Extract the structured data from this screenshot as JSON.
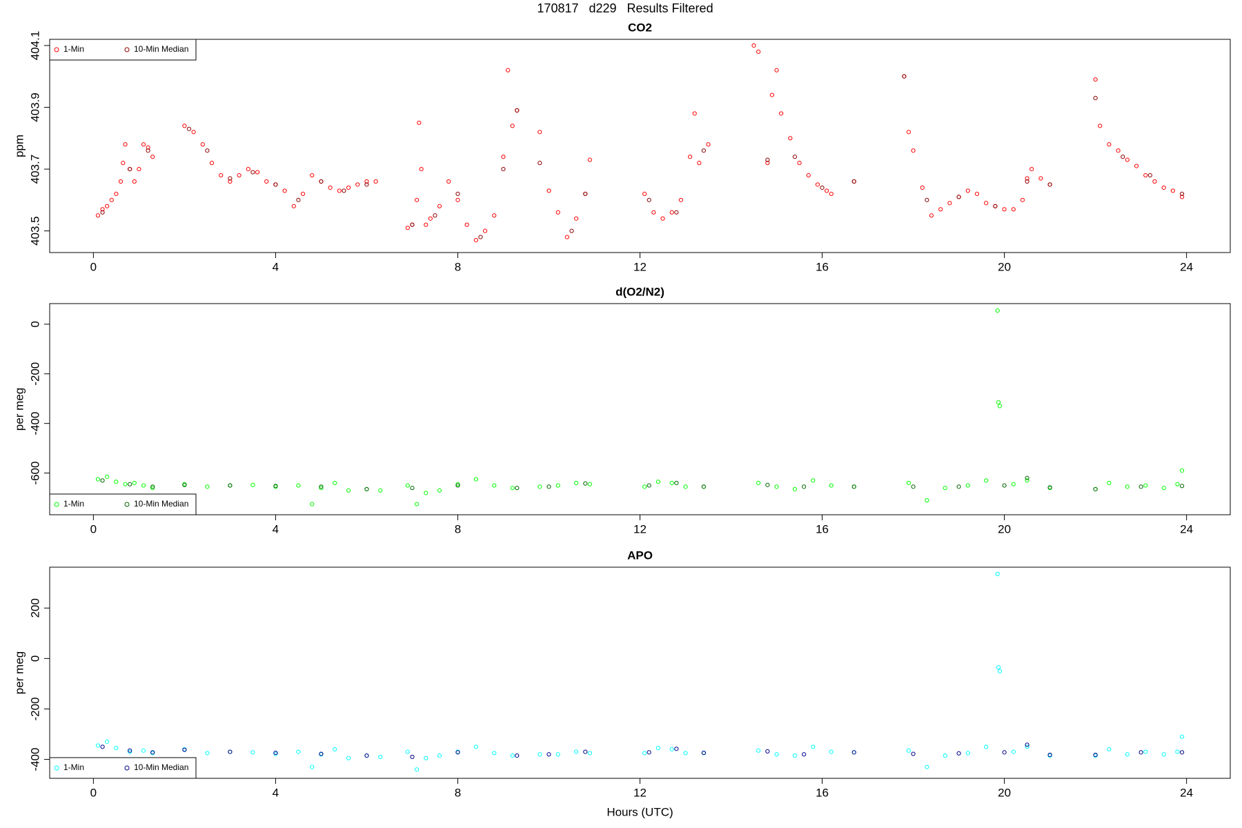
{
  "title": "170817   d229   Results Filtered",
  "chart_data": [
    {
      "type": "scatter",
      "title": "CO2",
      "ylabel": "ppm",
      "legend": "top-left",
      "xlim": [
        -0.96,
        24.96
      ],
      "xticks": [
        0,
        4,
        8,
        12,
        16,
        20,
        24
      ],
      "ylim": [
        403.43,
        404.12
      ],
      "yticks": [
        403.5,
        403.7,
        403.9,
        404.1
      ],
      "series": [
        {
          "name": "1-Min",
          "color": "#ff0000",
          "x": [
            0.1,
            0.2,
            0.3,
            0.4,
            0.5,
            0.6,
            0.65,
            0.7,
            0.8,
            0.9,
            1.0,
            1.1,
            1.2,
            1.3,
            2.0,
            2.2,
            2.4,
            2.6,
            2.8,
            3.0,
            3.2,
            3.4,
            3.6,
            3.8,
            4.0,
            4.2,
            4.4,
            4.6,
            4.8,
            5.0,
            5.2,
            5.4,
            5.6,
            5.8,
            6.0,
            6.2,
            6.9,
            7.0,
            7.1,
            7.15,
            7.2,
            7.3,
            7.4,
            7.6,
            7.8,
            8.0,
            8.2,
            8.4,
            8.6,
            8.8,
            9.0,
            9.1,
            9.2,
            9.3,
            9.8,
            10.0,
            10.2,
            10.4,
            10.6,
            10.8,
            10.9,
            12.1,
            12.3,
            12.5,
            12.7,
            12.9,
            13.1,
            13.2,
            13.3,
            13.5,
            14.5,
            14.6,
            14.8,
            14.9,
            15.0,
            15.1,
            15.3,
            15.5,
            15.7,
            15.9,
            16.1,
            16.2,
            16.7,
            17.8,
            17.9,
            18.0,
            18.2,
            18.4,
            18.6,
            18.8,
            19.0,
            19.2,
            19.4,
            19.6,
            19.8,
            20.0,
            20.2,
            20.4,
            20.5,
            20.6,
            20.8,
            21.0,
            22.0,
            22.1,
            22.3,
            22.5,
            22.7,
            22.9,
            23.1,
            23.3,
            23.5,
            23.7,
            23.9
          ],
          "values": [
            403.55,
            403.57,
            403.58,
            403.6,
            403.62,
            403.66,
            403.72,
            403.78,
            403.7,
            403.66,
            403.7,
            403.78,
            403.77,
            403.74,
            403.84,
            403.82,
            403.78,
            403.72,
            403.68,
            403.66,
            403.68,
            403.7,
            403.69,
            403.66,
            403.65,
            403.63,
            403.58,
            403.62,
            403.68,
            403.66,
            403.64,
            403.63,
            403.64,
            403.65,
            403.66,
            403.66,
            403.51,
            403.52,
            403.6,
            403.85,
            403.7,
            403.52,
            403.54,
            403.58,
            403.66,
            403.6,
            403.52,
            403.47,
            403.5,
            403.55,
            403.74,
            404.02,
            403.84,
            403.89,
            403.82,
            403.63,
            403.56,
            403.48,
            403.54,
            403.62,
            403.73,
            403.62,
            403.56,
            403.54,
            403.56,
            403.6,
            403.74,
            403.88,
            403.72,
            403.78,
            404.1,
            404.08,
            403.72,
            403.94,
            404.02,
            403.88,
            403.8,
            403.72,
            403.68,
            403.65,
            403.63,
            403.62,
            403.66,
            404.0,
            403.82,
            403.76,
            403.64,
            403.55,
            403.57,
            403.59,
            403.61,
            403.63,
            403.62,
            403.59,
            403.58,
            403.57,
            403.57,
            403.6,
            403.67,
            403.7,
            403.67,
            403.65,
            403.99,
            403.84,
            403.78,
            403.76,
            403.73,
            403.71,
            403.68,
            403.66,
            403.64,
            403.63,
            403.61
          ]
        },
        {
          "name": "10-Min Median",
          "color": "#8b0000",
          "x": [
            0.2,
            0.8,
            1.2,
            2.1,
            2.5,
            3.0,
            3.5,
            4.0,
            4.5,
            5.0,
            5.5,
            6.0,
            7.0,
            7.5,
            8.0,
            8.5,
            9.0,
            9.3,
            9.8,
            10.5,
            10.8,
            12.2,
            12.8,
            13.4,
            14.8,
            15.4,
            16.0,
            16.7,
            17.8,
            18.3,
            19.0,
            19.8,
            20.5,
            21.0,
            22.0,
            22.6,
            23.2,
            23.9
          ],
          "values": [
            403.56,
            403.7,
            403.76,
            403.83,
            403.76,
            403.67,
            403.69,
            403.65,
            403.6,
            403.66,
            403.63,
            403.65,
            403.52,
            403.55,
            403.62,
            403.48,
            403.7,
            403.89,
            403.72,
            403.5,
            403.62,
            403.6,
            403.56,
            403.76,
            403.73,
            403.74,
            403.64,
            403.66,
            404.0,
            403.6,
            403.61,
            403.58,
            403.66,
            403.65,
            403.93,
            403.74,
            403.68,
            403.62
          ]
        }
      ]
    },
    {
      "type": "scatter",
      "title": "d(O2/N2)",
      "ylabel": "per meg",
      "legend": "bottom-left",
      "xlim": [
        -0.96,
        24.96
      ],
      "xticks": [
        0,
        4,
        8,
        12,
        16,
        20,
        24
      ],
      "ylim": [
        -768,
        83
      ],
      "yticks": [
        -600,
        -400,
        -200,
        0
      ],
      "series": [
        {
          "name": "1-Min",
          "color": "#00ff00",
          "x": [
            0.1,
            0.3,
            0.5,
            0.7,
            0.9,
            1.1,
            1.3,
            2.0,
            2.5,
            3.0,
            3.5,
            4.0,
            4.5,
            4.8,
            5.0,
            5.3,
            5.6,
            6.0,
            6.3,
            6.9,
            7.1,
            7.3,
            7.6,
            8.0,
            8.4,
            8.8,
            9.2,
            9.8,
            10.2,
            10.6,
            10.9,
            12.1,
            12.4,
            12.7,
            13.0,
            13.4,
            14.6,
            15.0,
            15.4,
            15.8,
            16.2,
            16.7,
            17.9,
            18.3,
            18.7,
            19.2,
            19.6,
            19.85,
            19.87,
            19.9,
            20.2,
            20.5,
            21.0,
            22.0,
            22.3,
            22.7,
            23.1,
            23.5,
            23.8,
            23.9
          ],
          "values": [
            -625,
            -615,
            -635,
            -645,
            -640,
            -650,
            -660,
            -645,
            -655,
            -650,
            -648,
            -655,
            -650,
            -725,
            -660,
            -640,
            -670,
            -665,
            -670,
            -650,
            -725,
            -680,
            -670,
            -645,
            -625,
            -650,
            -660,
            -655,
            -650,
            -640,
            -645,
            -655,
            -635,
            -640,
            -655,
            -655,
            -640,
            -655,
            -665,
            -630,
            -650,
            -655,
            -640,
            -710,
            -660,
            -650,
            -630,
            55,
            -315,
            -330,
            -645,
            -630,
            -660,
            -665,
            -640,
            -655,
            -650,
            -660,
            -645,
            -590
          ]
        },
        {
          "name": "10-Min Median",
          "color": "#006400",
          "x": [
            0.2,
            0.8,
            1.3,
            2.0,
            3.0,
            4.0,
            5.0,
            6.0,
            7.0,
            8.0,
            9.3,
            10.0,
            10.8,
            12.2,
            12.8,
            13.4,
            14.8,
            15.6,
            16.7,
            18.0,
            19.0,
            20.0,
            20.5,
            21.0,
            22.0,
            23.0,
            23.9
          ],
          "values": [
            -630,
            -645,
            -655,
            -648,
            -650,
            -652,
            -655,
            -665,
            -660,
            -650,
            -660,
            -655,
            -642,
            -650,
            -640,
            -655,
            -648,
            -655,
            -655,
            -655,
            -655,
            -650,
            -620,
            -658,
            -665,
            -655,
            -652
          ]
        }
      ]
    },
    {
      "type": "scatter",
      "title": "APO",
      "ylabel": "per meg",
      "xlabel": "Hours (UTC)",
      "legend": "bottom-left",
      "xlim": [
        -0.96,
        24.96
      ],
      "xticks": [
        0,
        4,
        8,
        12,
        16,
        20,
        24
      ],
      "ylim": [
        -475,
        362
      ],
      "yticks": [
        -400,
        -200,
        0,
        200
      ],
      "series": [
        {
          "name": "1-Min",
          "color": "#00ffff",
          "x": [
            0.1,
            0.3,
            0.5,
            0.8,
            1.1,
            1.3,
            2.0,
            2.5,
            3.0,
            3.5,
            4.0,
            4.5,
            4.8,
            5.0,
            5.3,
            5.6,
            6.0,
            6.3,
            6.9,
            7.1,
            7.3,
            7.6,
            8.0,
            8.4,
            8.8,
            9.2,
            9.8,
            10.2,
            10.6,
            10.9,
            12.1,
            12.4,
            12.7,
            13.0,
            13.4,
            14.6,
            15.0,
            15.4,
            15.8,
            16.2,
            16.7,
            17.9,
            18.3,
            18.7,
            19.2,
            19.6,
            19.85,
            19.87,
            19.9,
            20.2,
            20.5,
            21.0,
            22.0,
            22.3,
            22.7,
            23.1,
            23.5,
            23.8,
            23.9
          ],
          "values": [
            -345,
            -330,
            -355,
            -370,
            -365,
            -375,
            -360,
            -375,
            -370,
            -372,
            -378,
            -370,
            -430,
            -380,
            -360,
            -395,
            -385,
            -390,
            -370,
            -440,
            -395,
            -385,
            -370,
            -350,
            -375,
            -385,
            -380,
            -380,
            -370,
            -375,
            -375,
            -355,
            -360,
            -375,
            -375,
            -365,
            -380,
            -385,
            -350,
            -370,
            -372,
            -365,
            -430,
            -385,
            -375,
            -350,
            335,
            -35,
            -50,
            -370,
            -350,
            -385,
            -385,
            -360,
            -380,
            -370,
            -380,
            -370,
            -310
          ]
        },
        {
          "name": "10-Min Median",
          "color": "#00008b",
          "x": [
            0.2,
            0.8,
            1.3,
            2.0,
            3.0,
            4.0,
            5.0,
            6.0,
            7.0,
            8.0,
            9.3,
            10.0,
            10.8,
            12.2,
            12.8,
            13.4,
            14.8,
            15.6,
            16.7,
            18.0,
            19.0,
            20.0,
            20.5,
            21.0,
            22.0,
            23.0,
            23.9
          ],
          "values": [
            -350,
            -365,
            -372,
            -362,
            -370,
            -374,
            -378,
            -385,
            -390,
            -372,
            -385,
            -380,
            -370,
            -372,
            -358,
            -374,
            -368,
            -380,
            -372,
            -378,
            -376,
            -372,
            -342,
            -382,
            -382,
            -372,
            -372
          ]
        }
      ]
    }
  ]
}
